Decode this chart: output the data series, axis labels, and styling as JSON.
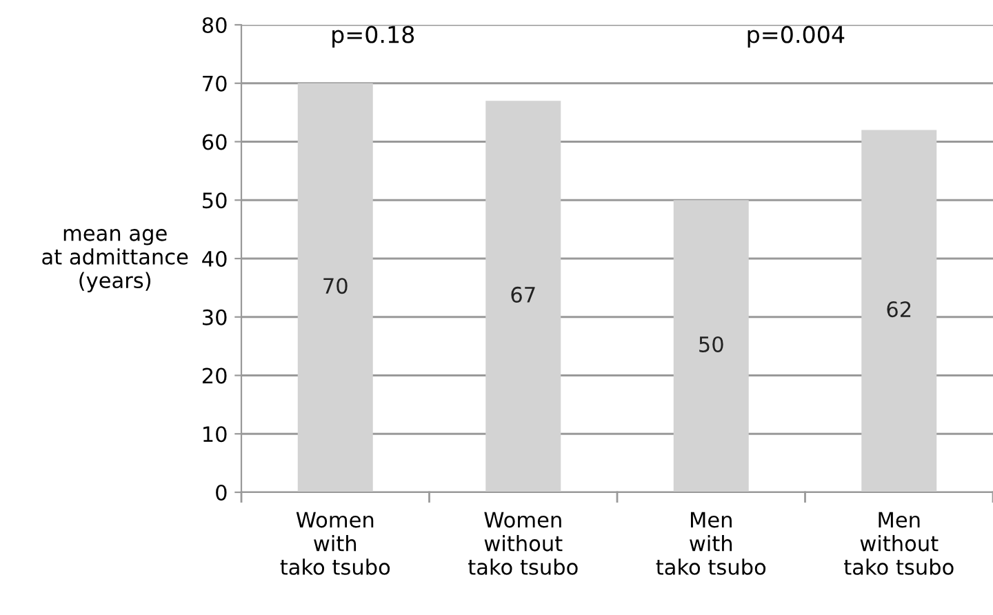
{
  "chart_data": {
    "type": "bar",
    "ylabel": "mean age\nat admittance\n(years)",
    "categories": [
      "Women\nwith\ntako tsubo",
      "Women\nwithout\ntako tsubo",
      "Men\nwith\ntako tsubo",
      "Men\nwithout\ntako tsubo"
    ],
    "values": [
      70,
      67,
      50,
      62
    ],
    "color": "#d3d3d3",
    "data_labels": true,
    "ylim": [
      0,
      80
    ],
    "yticks": [
      0,
      10,
      20,
      30,
      40,
      50,
      60,
      70,
      80
    ],
    "grid": "y",
    "legend": false,
    "annotations": [
      "p=0.18",
      "p=0.004"
    ]
  }
}
